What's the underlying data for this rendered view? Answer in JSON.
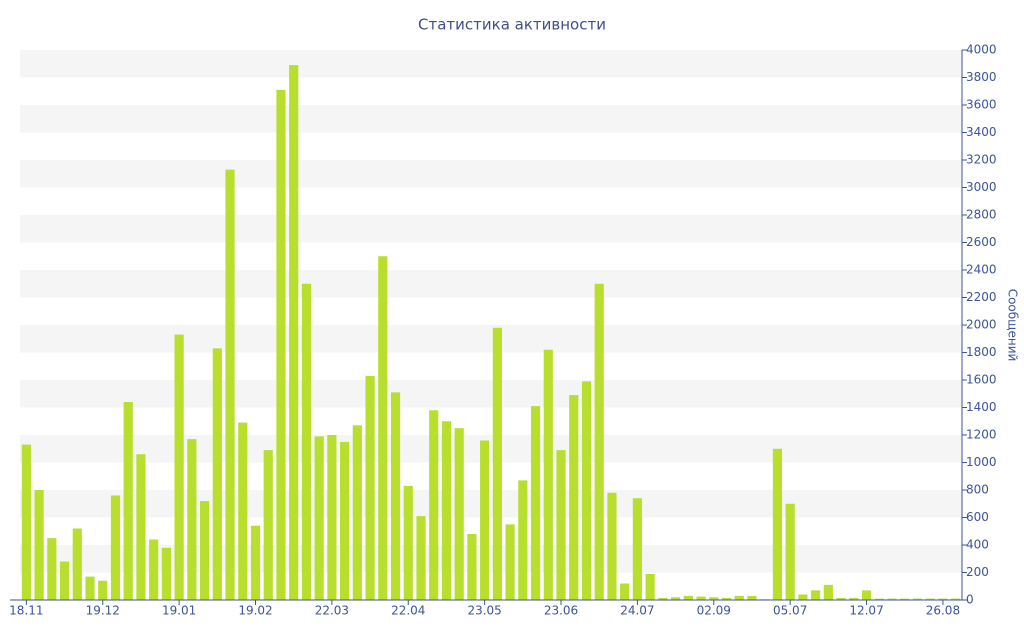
{
  "chart_data": {
    "type": "bar",
    "title": "Статистика активности",
    "y_label": "Сообщений",
    "categories": [
      "18.11",
      null,
      null,
      null,
      null,
      null,
      "19.12",
      null,
      null,
      null,
      null,
      null,
      "19.01",
      null,
      null,
      null,
      null,
      null,
      "19.02",
      null,
      null,
      null,
      null,
      null,
      "22.03",
      null,
      null,
      null,
      null,
      null,
      "22.04",
      null,
      null,
      null,
      null,
      null,
      "23.05",
      null,
      null,
      null,
      null,
      null,
      "23.06",
      null,
      null,
      null,
      null,
      null,
      "24.07",
      null,
      null,
      null,
      null,
      null,
      "02.09",
      null,
      null,
      null,
      null,
      null,
      "05.07",
      null,
      null,
      null,
      null,
      null,
      "12.07",
      null,
      null,
      null,
      null,
      null,
      "26.08",
      null
    ],
    "values": [
      1130,
      800,
      450,
      280,
      520,
      170,
      140,
      760,
      1440,
      1060,
      440,
      380,
      1930,
      1170,
      720,
      1830,
      3130,
      1290,
      540,
      1090,
      3710,
      3890,
      2300,
      1190,
      1200,
      1150,
      1270,
      1630,
      2500,
      1510,
      830,
      610,
      1380,
      1300,
      1250,
      480,
      1160,
      1980,
      550,
      870,
      1410,
      1820,
      1090,
      1490,
      1590,
      2300,
      780,
      120,
      740,
      190,
      15,
      20,
      30,
      25,
      20,
      15,
      30,
      30,
      5,
      1100,
      700,
      40,
      70,
      110,
      15,
      15,
      70,
      10,
      10,
      10,
      10,
      10,
      10,
      10
    ],
    "color": "#b8de2e",
    "ylim": [
      0,
      4000
    ],
    "yticks": [
      0,
      200,
      400,
      600,
      800,
      1000,
      1200,
      1400,
      1600,
      1800,
      2000,
      2200,
      2400,
      2600,
      2800,
      3000,
      3200,
      3400,
      3600,
      3800,
      4000
    ],
    "grid": "bands",
    "y_axis_side": "right"
  }
}
